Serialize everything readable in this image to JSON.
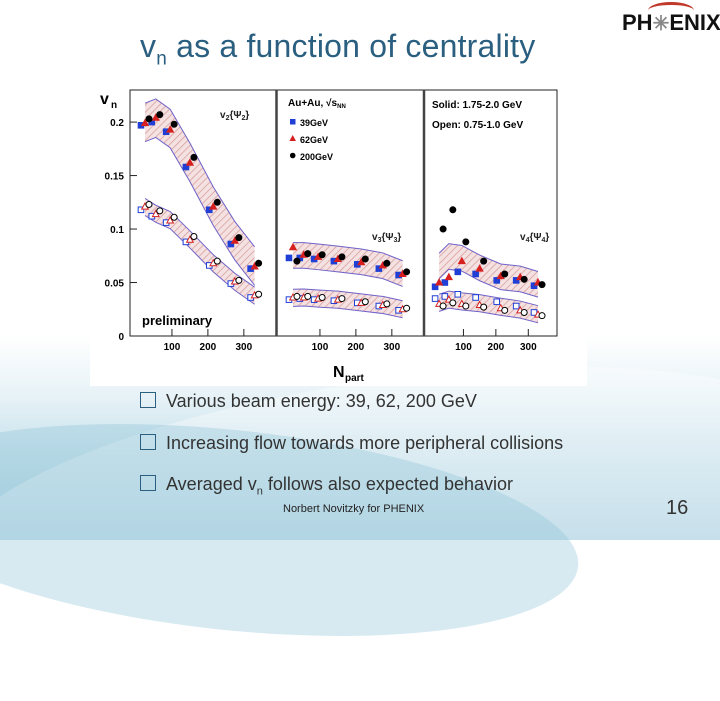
{
  "slide": {
    "title_main": "v",
    "title_sub": "n",
    "title_rest": " as a function of centrality",
    "logo_left": "PH",
    "logo_star": "✳",
    "logo_right": "ENIX",
    "footer": "Norbert Novitzky for PHENIX",
    "page_number": "16",
    "bullets": [
      {
        "text": "Various beam energy: 39, 62, 200 GeV"
      },
      {
        "text": "Increasing flow towards more peripheral collisions"
      },
      {
        "text_pre": "Averaged v",
        "text_sub": "n",
        "text_post": " follows also expected behavior"
      }
    ]
  },
  "colors": {
    "title": "#2a5f80",
    "e39": "#1f3fd6",
    "e62": "#d62020",
    "e200": "#000000",
    "band_fill": "#d8a7a7",
    "band_line": "#6f62c8"
  },
  "chart_data": {
    "type": "scatter",
    "ylabel_main": "v",
    "ylabel_sub": "n",
    "xlabel_main": "N",
    "xlabel_sub": "part",
    "ylim": [
      0,
      0.23
    ],
    "yticks": [
      0,
      0.05,
      0.1,
      0.15,
      0.2
    ],
    "ytick_labels": [
      "0",
      "0.05",
      "0.1",
      "0.15",
      "0.2"
    ],
    "xlim": [
      0,
      370
    ],
    "xticks": [
      100,
      200,
      300
    ],
    "annotation": "preliminary",
    "legend": {
      "header": "Au+Au, √s",
      "header_sub": "NN",
      "entries": [
        {
          "label": "39GeV",
          "marker": "square",
          "color": "#1f3fd6"
        },
        {
          "label": "62GeV",
          "marker": "triangle",
          "color": "#d62020"
        },
        {
          "label": "200GeV",
          "marker": "circle",
          "color": "#000000"
        }
      ],
      "solid": "Solid: 1.75-2.0 GeV",
      "open": "Open: 0.75-1.0 GeV"
    },
    "panels": [
      {
        "label": "v2{Ψ2}",
        "label_main": "v",
        "label_idx": "2",
        "label_psi": "Ψ",
        "label_psi_idx": "2",
        "x": [
          25,
          55,
          95,
          150,
          215,
          275,
          330
        ],
        "solid": {
          "39GeV": [
            0.197,
            0.2,
            0.191,
            0.158,
            0.118,
            0.086,
            0.063
          ],
          "62GeV": [
            0.199,
            0.204,
            0.193,
            0.162,
            0.121,
            0.089,
            0.065
          ],
          "200GeV": [
            0.203,
            0.207,
            0.198,
            0.167,
            0.125,
            0.092,
            0.068
          ]
        },
        "open": {
          "39GeV": [
            0.118,
            0.112,
            0.106,
            0.088,
            0.066,
            0.049,
            0.036
          ],
          "62GeV": [
            0.121,
            0.114,
            0.108,
            0.09,
            0.068,
            0.051,
            0.038
          ],
          "200GeV": [
            0.123,
            0.117,
            0.111,
            0.093,
            0.07,
            0.052,
            0.039
          ]
        }
      },
      {
        "label": "v3{Ψ3}",
        "label_main": "v",
        "label_idx": "3",
        "label_psi": "Ψ",
        "label_psi_idx": "3",
        "x": [
          25,
          55,
          95,
          150,
          215,
          275,
          330
        ],
        "solid": {
          "39GeV": [
            0.073,
            0.073,
            0.072,
            0.07,
            0.067,
            0.063,
            0.057
          ],
          "62GeV": [
            0.083,
            0.076,
            0.074,
            0.072,
            0.069,
            0.066,
            0.058
          ],
          "200GeV": [
            0.07,
            0.077,
            0.076,
            0.074,
            0.072,
            0.068,
            0.06
          ]
        },
        "open": {
          "39GeV": [
            0.034,
            0.035,
            0.034,
            0.033,
            0.031,
            0.028,
            0.024
          ],
          "62GeV": [
            0.036,
            0.036,
            0.035,
            0.034,
            0.031,
            0.029,
            0.025
          ],
          "200GeV": [
            0.037,
            0.037,
            0.036,
            0.035,
            0.032,
            0.03,
            0.026
          ]
        }
      },
      {
        "label": "v4{Ψ4}",
        "label_main": "v",
        "label_idx": "4",
        "label_psi": "Ψ",
        "label_psi_idx": "4",
        "x": [
          25,
          55,
          95,
          150,
          215,
          275,
          330
        ],
        "solid": {
          "39GeV": [
            0.046,
            0.05,
            0.06,
            0.058,
            0.052,
            0.052,
            0.047
          ],
          "62GeV": [
            0.05,
            0.055,
            0.07,
            0.063,
            0.056,
            0.055,
            0.05
          ],
          "200GeV": [
            0.1,
            0.118,
            0.088,
            0.07,
            0.058,
            0.053,
            0.048
          ]
        },
        "open": {
          "39GeV": [
            0.035,
            0.037,
            0.039,
            0.036,
            0.032,
            0.028,
            0.022
          ],
          "62GeV": [
            0.03,
            0.034,
            0.03,
            0.029,
            0.026,
            0.024,
            0.02
          ],
          "200GeV": [
            0.028,
            0.031,
            0.028,
            0.027,
            0.024,
            0.022,
            0.019
          ]
        }
      }
    ]
  }
}
